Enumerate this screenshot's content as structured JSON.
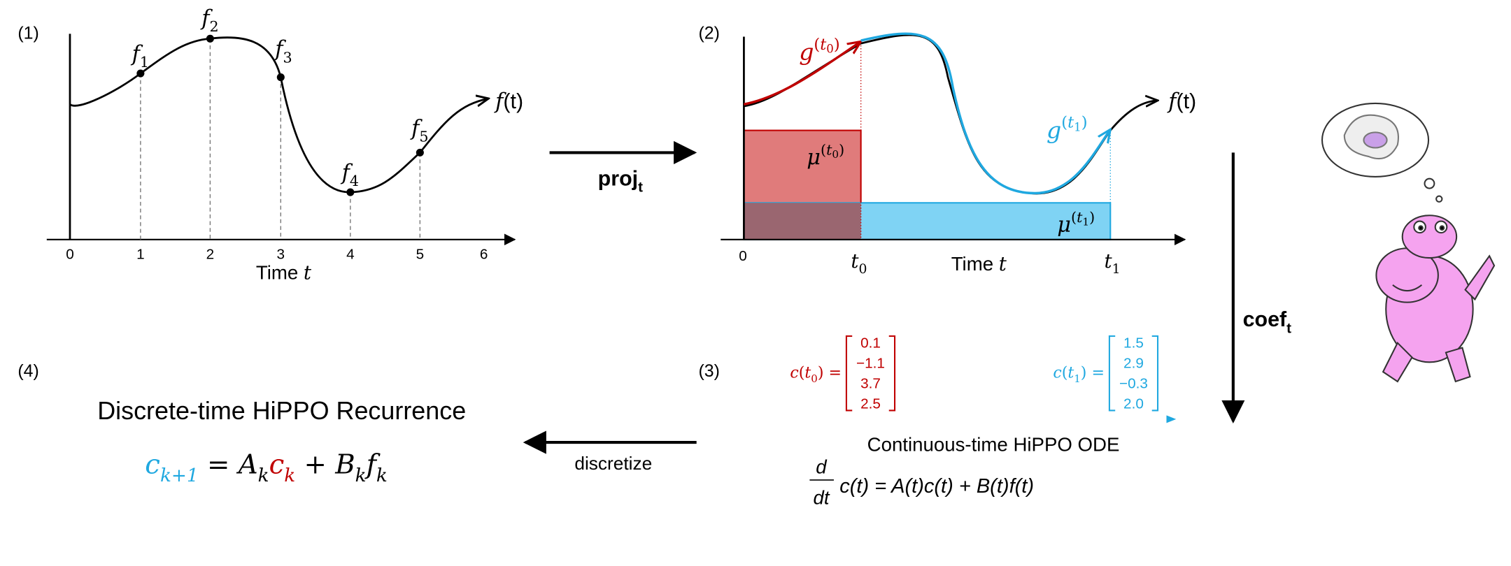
{
  "panel1": {
    "label": "(1)",
    "x_ticks": [
      "0",
      "1",
      "2",
      "3",
      "4",
      "5",
      "6"
    ],
    "x_label": [
      [
        "Time ",
        "sans",
        "base"
      ],
      [
        "t",
        "math",
        "base"
      ]
    ],
    "points": [
      [
        [
          "f",
          "math",
          "base"
        ],
        [
          "1",
          "rm",
          "sub"
        ]
      ],
      [
        [
          "f",
          "math",
          "base"
        ],
        [
          "2",
          "rm",
          "sub"
        ]
      ],
      [
        [
          "f",
          "math",
          "base"
        ],
        [
          "3",
          "rm",
          "sub"
        ]
      ],
      [
        [
          "f",
          "math",
          "base"
        ],
        [
          "4",
          "rm",
          "sub"
        ]
      ],
      [
        [
          "f",
          "math",
          "base"
        ],
        [
          "5",
          "rm",
          "sub"
        ]
      ]
    ],
    "curve_label": [
      [
        "f",
        "math",
        "base"
      ],
      [
        "(t)",
        "sans",
        "base"
      ]
    ]
  },
  "proj_arrow": [
    [
      "proj",
      "bold",
      "base"
    ],
    [
      "t",
      "bold",
      "sub"
    ]
  ],
  "panel2": {
    "label": "(2)",
    "origin": "0",
    "t0": [
      [
        "t",
        "math",
        "base"
      ],
      [
        "0",
        "rm",
        "sub"
      ]
    ],
    "t1": [
      [
        "t",
        "math",
        "base"
      ],
      [
        "1",
        "rm",
        "sub"
      ]
    ],
    "x_label": [
      [
        "Time ",
        "sans",
        "base"
      ],
      [
        "t",
        "math",
        "base"
      ]
    ],
    "g_t0": [
      [
        "g",
        "math",
        "base"
      ],
      [
        "(",
        "rm",
        "sup"
      ],
      [
        "t",
        "math",
        "sup"
      ],
      [
        "0",
        "rm",
        "supsub"
      ],
      [
        ")",
        "rm",
        "sup"
      ]
    ],
    "mu_t0": [
      [
        "μ",
        "math",
        "base"
      ],
      [
        "(",
        "rm",
        "sup"
      ],
      [
        "t",
        "math",
        "sup"
      ],
      [
        "0",
        "rm",
        "supsub"
      ],
      [
        ")",
        "rm",
        "sup"
      ]
    ],
    "mu_t1": [
      [
        "μ",
        "math",
        "base"
      ],
      [
        "(",
        "rm",
        "sup"
      ],
      [
        "t",
        "math",
        "sup"
      ],
      [
        "1",
        "rm",
        "supsub"
      ],
      [
        ")",
        "rm",
        "sup"
      ]
    ],
    "g_t1": [
      [
        "g",
        "math",
        "base"
      ],
      [
        "(",
        "rm",
        "sup"
      ],
      [
        "t",
        "math",
        "sup"
      ],
      [
        "1",
        "rm",
        "supsub"
      ],
      [
        ")",
        "rm",
        "sup"
      ]
    ],
    "curve_label": [
      [
        "f",
        "math",
        "base"
      ],
      [
        "(t)",
        "sans",
        "base"
      ]
    ]
  },
  "coef_arrow": [
    [
      "coef",
      "bold",
      "base"
    ],
    [
      "t",
      "bold",
      "sub"
    ]
  ],
  "panel3": {
    "label": "(3)",
    "c_t0": {
      "lhs": [
        [
          "c",
          "math",
          "base"
        ],
        [
          "(",
          "rm",
          "base"
        ],
        [
          "t",
          "math",
          "base"
        ],
        [
          "0",
          "rm",
          "sub"
        ],
        [
          ") =",
          "rm",
          "base"
        ]
      ],
      "values": [
        "0.1",
        "−1.1",
        "3.7",
        "2.5"
      ]
    },
    "c_t1": {
      "lhs": [
        [
          "c",
          "math",
          "base"
        ],
        [
          "(",
          "rm",
          "base"
        ],
        [
          "t",
          "math",
          "base"
        ],
        [
          "1",
          "rm",
          "sub"
        ],
        [
          ") =",
          "rm",
          "base"
        ]
      ],
      "values": [
        "1.5",
        "2.9",
        "−0.3",
        "2.0"
      ]
    },
    "title": "Continuous-time HiPPO ODE",
    "fraction": {
      "num": "d",
      "den": "dt"
    },
    "rhs": "c(t) = A(t)c(t) + B(t)f(t)"
  },
  "discretize_arrow": "discretize",
  "panel4": {
    "label": "(4)",
    "title": "Discrete-time HiPPO Recurrence",
    "equation": [
      [
        "c",
        "math",
        "base",
        "#1fa8e0"
      ],
      [
        "k+1",
        "math",
        "sub",
        "#1fa8e0"
      ],
      [
        " = ",
        "rm",
        "base"
      ],
      [
        "A",
        "math",
        "base"
      ],
      [
        "k",
        "math",
        "sub"
      ],
      [
        "c",
        "math",
        "base",
        "#c00000"
      ],
      [
        "k",
        "math",
        "sub",
        "#c00000"
      ],
      [
        " + ",
        "rm",
        "base"
      ],
      [
        "B",
        "math",
        "base"
      ],
      [
        "k",
        "math",
        "sub"
      ],
      [
        "f",
        "math",
        "base"
      ],
      [
        "k",
        "math",
        "sub"
      ]
    ]
  }
}
